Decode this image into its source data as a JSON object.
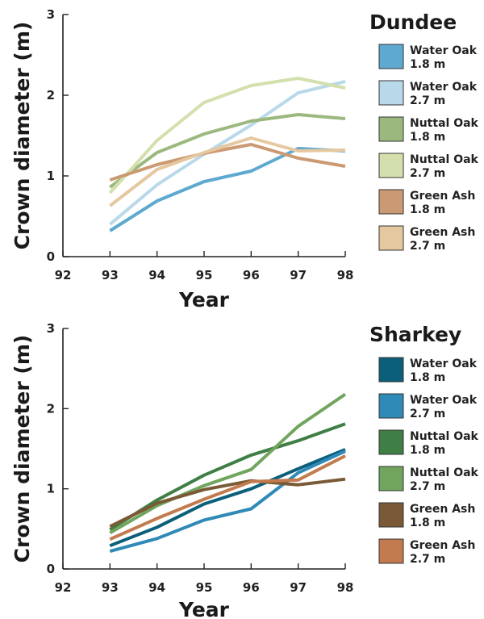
{
  "chart_data": [
    {
      "type": "line",
      "title": "Dundee",
      "xlabel": "Year",
      "ylabel": "Crown diameter (m)",
      "xlim": [
        92,
        98
      ],
      "ylim": [
        0,
        3
      ],
      "x_ticks": [
        "92",
        "93",
        "94",
        "95",
        "96",
        "97",
        "98"
      ],
      "y_ticks": [
        "0",
        "1",
        "2",
        "3"
      ],
      "grid": false,
      "legend": "right",
      "x": [
        93,
        94,
        95,
        96,
        97,
        98
      ],
      "series": [
        {
          "name_line1": "Water Oak",
          "name_line2": "1.8 m",
          "color": "#5ea9cf",
          "values": [
            0.32,
            0.69,
            0.93,
            1.06,
            1.34,
            1.31
          ]
        },
        {
          "name_line1": "Water Oak",
          "name_line2": "2.7 m",
          "color": "#b9d9ea",
          "values": [
            0.4,
            0.89,
            1.27,
            1.63,
            2.03,
            2.17
          ]
        },
        {
          "name_line1": "Nuttal Oak",
          "name_line2": "1.8 m",
          "color": "#9bb97f",
          "values": [
            0.86,
            1.29,
            1.52,
            1.68,
            1.76,
            1.71
          ]
        },
        {
          "name_line1": "Nuttal Oak",
          "name_line2": "2.7 m",
          "color": "#d3e0ad",
          "values": [
            0.79,
            1.44,
            1.91,
            2.12,
            2.21,
            2.09
          ]
        },
        {
          "name_line1": "Green Ash",
          "name_line2": "1.8 m",
          "color": "#cb9a73",
          "values": [
            0.95,
            1.14,
            1.28,
            1.39,
            1.22,
            1.12
          ]
        },
        {
          "name_line1": "Green Ash",
          "name_line2": "2.7 m",
          "color": "#e6c8a0",
          "values": [
            0.63,
            1.08,
            1.29,
            1.47,
            1.31,
            1.32
          ]
        }
      ]
    },
    {
      "type": "line",
      "title": "Sharkey",
      "xlabel": "Year",
      "ylabel": "Crown diameter (m)",
      "xlim": [
        92,
        98
      ],
      "ylim": [
        0,
        3
      ],
      "x_ticks": [
        "92",
        "93",
        "94",
        "95",
        "96",
        "97",
        "98"
      ],
      "y_ticks": [
        "0",
        "1",
        "2",
        "3"
      ],
      "grid": false,
      "legend": "right",
      "x": [
        93,
        94,
        95,
        96,
        97,
        98
      ],
      "series": [
        {
          "name_line1": "Water Oak",
          "name_line2": "1.8 m",
          "color": "#0b5f7a",
          "values": [
            0.29,
            0.52,
            0.81,
            1.0,
            1.25,
            1.49
          ]
        },
        {
          "name_line1": "Water Oak",
          "name_line2": "2.7 m",
          "color": "#2f8ab7",
          "values": [
            0.22,
            0.38,
            0.61,
            0.75,
            1.2,
            1.47
          ]
        },
        {
          "name_line1": "Nuttal Oak",
          "name_line2": "1.8 m",
          "color": "#3f7f45",
          "values": [
            0.49,
            0.86,
            1.17,
            1.42,
            1.6,
            1.81
          ]
        },
        {
          "name_line1": "Nuttal Oak",
          "name_line2": "2.7 m",
          "color": "#71a55e",
          "values": [
            0.45,
            0.79,
            1.04,
            1.24,
            1.78,
            2.18
          ]
        },
        {
          "name_line1": "Green Ash",
          "name_line2": "1.8 m",
          "color": "#7a5a36",
          "values": [
            0.53,
            0.82,
            0.99,
            1.1,
            1.05,
            1.12
          ]
        },
        {
          "name_line1": "Green Ash",
          "name_line2": "2.7 m",
          "color": "#c27b4e",
          "values": [
            0.37,
            0.63,
            0.87,
            1.09,
            1.11,
            1.41
          ]
        }
      ]
    }
  ]
}
